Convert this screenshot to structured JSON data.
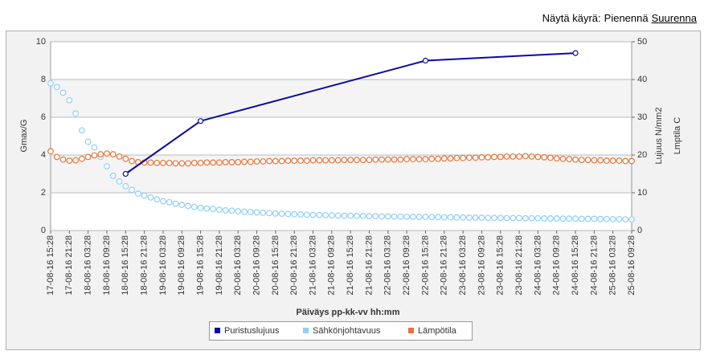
{
  "header": {
    "label": "Näytä käyrä:",
    "links": [
      "Pienennä",
      "Suurenna"
    ]
  },
  "chart_data": {
    "type": "line",
    "xlabel": "Päiväys pp-kk-vv hh:mm",
    "ylabel": "Gmax/G",
    "y2labels": [
      "Lujuus N/mm2",
      "Lmptila C"
    ],
    "ylim": [
      0,
      10
    ],
    "yticks": [
      0,
      2,
      4,
      6,
      8,
      10
    ],
    "y2lim": [
      0,
      50
    ],
    "y2ticks": [
      0,
      10,
      20,
      30,
      40,
      50
    ],
    "grid": true,
    "legend": "bottom",
    "categories": [
      "17-08-16 15:28",
      null,
      null,
      "17-08-16 21:28",
      null,
      null,
      "18-08-16 03:28",
      null,
      null,
      "18-08-16 09:28",
      null,
      null,
      "18-08-16 15:28",
      null,
      null,
      "18-08-16 21:28",
      null,
      null,
      "19-08-16 03:28",
      null,
      null,
      "19-08-16 09:28",
      null,
      null,
      "19-08-16 15:28",
      null,
      null,
      "19-08-16 21:28",
      null,
      null,
      "20-08-16 03:28",
      null,
      null,
      "20-08-16 09:28",
      null,
      null,
      "20-08-16 15:28",
      null,
      null,
      "20-08-16 21:28",
      null,
      null,
      "21-08-16 03:28",
      null,
      null,
      "21-08-16 09:28",
      null,
      null,
      "21-08-16 15:28",
      null,
      null,
      "21-08-16 21:28",
      null,
      null,
      "22-08-16 03:28",
      null,
      null,
      "22-08-16 09:28",
      null,
      null,
      "22-08-16 15:28",
      null,
      null,
      "22-08-16 21:28",
      null,
      null,
      "23-08-16 03:28",
      null,
      null,
      "23-08-16 09:28",
      null,
      null,
      "23-08-16 15:28",
      null,
      null,
      "23-08-16 21:28",
      null,
      null,
      "24-08-16 03:28",
      null,
      null,
      "24-08-16 09:28",
      null,
      null,
      "24-08-16 15:28",
      null,
      null,
      "24-08-16 21:28",
      null,
      null,
      "25-08-16 03:28",
      null,
      null,
      "25-08-16 09:28"
    ],
    "series": [
      {
        "name": "Puristuslujuus",
        "color": "#0a0aa0",
        "axis": "y2",
        "x": [
          "18-08-16 15:28",
          "19-08-16 15:28",
          "22-08-16 15:28",
          "24-08-16 15:28"
        ],
        "values": [
          15,
          29,
          45,
          47
        ]
      },
      {
        "name": "Sähkönjohtavuus",
        "color": "#8fd0f5",
        "values": [
          7.8,
          7.6,
          7.3,
          6.9,
          6.2,
          5.3,
          4.7,
          4.4,
          3.9,
          3.4,
          2.9,
          2.6,
          2.35,
          2.15,
          1.95,
          1.85,
          1.75,
          1.65,
          1.55,
          1.5,
          1.42,
          1.36,
          1.3,
          1.25,
          1.2,
          1.17,
          1.14,
          1.1,
          1.07,
          1.05,
          1.02,
          1.0,
          0.98,
          0.96,
          0.94,
          0.92,
          0.9,
          0.89,
          0.88,
          0.86,
          0.85,
          0.84,
          0.83,
          0.82,
          0.81,
          0.8,
          0.79,
          0.78,
          0.78,
          0.77,
          0.77,
          0.76,
          0.76,
          0.75,
          0.75,
          0.74,
          0.74,
          0.73,
          0.73,
          0.72,
          0.72,
          0.71,
          0.71,
          0.7,
          0.7,
          0.69,
          0.69,
          0.68,
          0.68,
          0.68,
          0.67,
          0.67,
          0.67,
          0.66,
          0.66,
          0.66,
          0.65,
          0.65,
          0.65,
          0.64,
          0.64,
          0.64,
          0.63,
          0.63,
          0.63,
          0.62,
          0.62,
          0.62,
          0.61,
          0.61,
          0.6,
          0.6,
          0.59,
          0.59
        ]
      },
      {
        "name": "Lämpötila",
        "color": "#e8743b",
        "axis": "y2",
        "values": [
          21,
          19.5,
          18.8,
          18.5,
          18.6,
          19.0,
          19.5,
          19.9,
          20.2,
          20.4,
          20.2,
          19.6,
          19.0,
          18.4,
          18.1,
          18.0,
          18.0,
          17.9,
          17.9,
          17.9,
          17.8,
          17.8,
          17.8,
          17.9,
          17.9,
          18.0,
          18.0,
          18.0,
          18.1,
          18.1,
          18.1,
          18.2,
          18.2,
          18.3,
          18.3,
          18.4,
          18.4,
          18.4,
          18.5,
          18.5,
          18.5,
          18.5,
          18.6,
          18.6,
          18.6,
          18.6,
          18.6,
          18.7,
          18.7,
          18.7,
          18.7,
          18.7,
          18.8,
          18.8,
          18.8,
          18.8,
          18.8,
          18.9,
          18.9,
          18.9,
          18.9,
          19.0,
          19.0,
          19.1,
          19.1,
          19.2,
          19.2,
          19.3,
          19.3,
          19.4,
          19.4,
          19.5,
          19.5,
          19.6,
          19.6,
          19.6,
          19.7,
          19.6,
          19.5,
          19.4,
          19.3,
          19.1,
          19.0,
          18.9,
          18.8,
          18.7,
          18.7,
          18.6,
          18.6,
          18.5,
          18.5,
          18.5,
          18.4,
          18.4
        ]
      }
    ]
  }
}
